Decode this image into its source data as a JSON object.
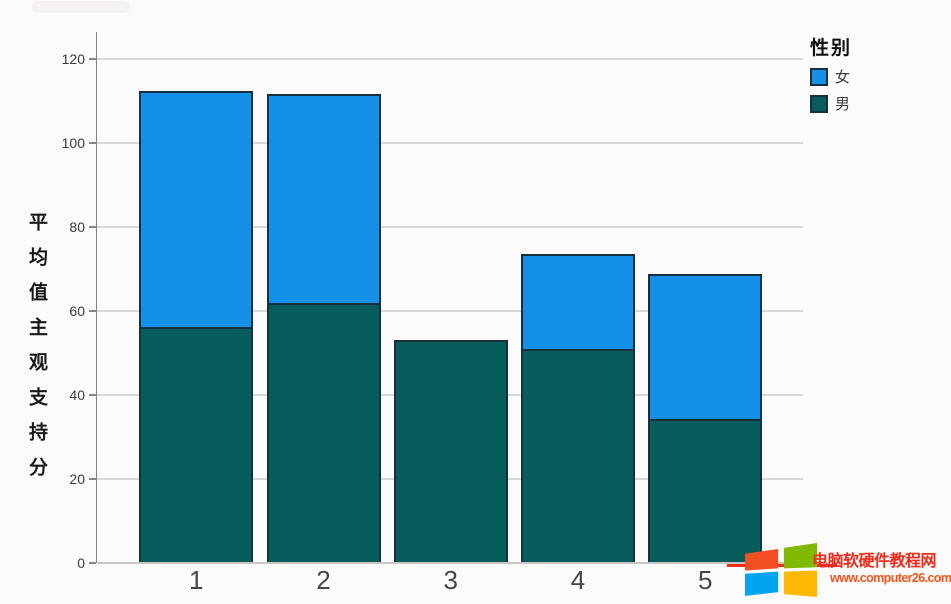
{
  "chart_data": {
    "type": "bar",
    "stacked": true,
    "title": "",
    "xlabel": "",
    "ylabel": "平均值主观支持分",
    "categories": [
      "1",
      "2",
      "3",
      "4",
      "5"
    ],
    "series": [
      {
        "name": "女",
        "color": "#1590e8",
        "values": [
          56.1,
          49.8,
          0,
          22.7,
          34.7
        ]
      },
      {
        "name": "男",
        "color": "#075d5b",
        "values": [
          56.2,
          61.8,
          53.0,
          50.9,
          34.2
        ]
      }
    ],
    "stack_order_bottom_to_top": [
      "男",
      "女"
    ],
    "totals": [
      112.3,
      111.6,
      53.0,
      73.6,
      68.9
    ],
    "ylim": [
      0,
      126
    ],
    "y_ticks": [
      0,
      20,
      40,
      60,
      80,
      100,
      120
    ],
    "grid": "horizontal",
    "legend_position": "top-right",
    "bar_border_color": "#182f3d",
    "gridline_color": "#d8d8d8",
    "axis_color": "#848484"
  },
  "legend": {
    "title": "性别",
    "items": [
      {
        "label": "女",
        "color": "#1590e8"
      },
      {
        "label": "男",
        "color": "#075d5b"
      }
    ]
  },
  "watermark": {
    "site_name": "电脑软硬件教程网",
    "site_url": "www.computer26.com",
    "text_color": "#ef2b1c",
    "url_color": "#f4551f",
    "logo_colors": {
      "top_left": "#f25022",
      "top_right": "#7fba00",
      "bottom_left": "#00a4ef",
      "bottom_right": "#ffb900"
    }
  }
}
